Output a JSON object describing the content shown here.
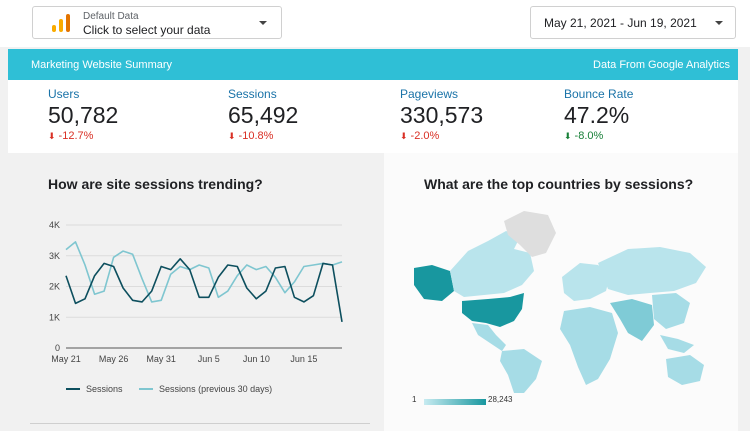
{
  "header": {
    "datasource_name": "Default Data",
    "datasource_prompt": "Click to select your data",
    "date_range": "May 21, 2021 - Jun 19, 2021"
  },
  "banner": {
    "title": "Marketing Website Summary",
    "source": "Data From Google Analytics",
    "color": "#2fbfd6"
  },
  "kpis": [
    {
      "label": "Users",
      "value": "50,782",
      "delta": "-12.7%",
      "direction": "down",
      "status": "negative"
    },
    {
      "label": "Sessions",
      "value": "65,492",
      "delta": "-10.8%",
      "direction": "down",
      "status": "negative"
    },
    {
      "label": "Pageviews",
      "value": "330,573",
      "delta": "-2.0%",
      "direction": "down",
      "status": "negative"
    },
    {
      "label": "Bounce Rate",
      "value": "47.2%",
      "delta": "-8.0%",
      "direction": "down",
      "status": "positive"
    }
  ],
  "trend": {
    "title": "How are site sessions trending?",
    "legend": [
      "Sessions",
      "Sessions (previous 30 days)"
    ]
  },
  "countries": {
    "title": "What are the top countries by sessions?",
    "scale_min": "1",
    "scale_max": "28,243",
    "colors": {
      "low": "#c7ebf1",
      "high": "#18979f",
      "none": "#dedede"
    }
  },
  "chart_data": [
    {
      "type": "line",
      "title": "How are site sessions trending?",
      "xlabel": "",
      "ylabel": "",
      "x": [
        "May 21",
        "May 22",
        "May 23",
        "May 24",
        "May 25",
        "May 26",
        "May 27",
        "May 28",
        "May 29",
        "May 30",
        "May 31",
        "Jun 1",
        "Jun 2",
        "Jun 3",
        "Jun 4",
        "Jun 5",
        "Jun 6",
        "Jun 7",
        "Jun 8",
        "Jun 9",
        "Jun 10",
        "Jun 11",
        "Jun 12",
        "Jun 13",
        "Jun 14",
        "Jun 15",
        "Jun 16",
        "Jun 17",
        "Jun 18",
        "Jun 19"
      ],
      "x_ticks": [
        "May 21",
        "May 26",
        "May 31",
        "Jun 5",
        "Jun 10",
        "Jun 15"
      ],
      "y_ticks": [
        "0",
        "1K",
        "2K",
        "3K",
        "4K"
      ],
      "ylim": [
        0,
        4000
      ],
      "grid": true,
      "legend_position": "bottom",
      "series": [
        {
          "name": "Sessions",
          "color": "#0d4f5e",
          "values": [
            2350,
            1450,
            1600,
            2350,
            2750,
            2650,
            1950,
            1550,
            1500,
            1850,
            2650,
            2550,
            2900,
            2550,
            1650,
            1650,
            2300,
            2700,
            2650,
            1950,
            1600,
            1850,
            2600,
            2650,
            1650,
            1500,
            1700,
            2750,
            2700,
            850
          ]
        },
        {
          "name": "Sessions (previous 30 days)",
          "color": "#7fc6d0",
          "values": [
            3200,
            3450,
            2700,
            1750,
            1850,
            2950,
            3150,
            3050,
            2250,
            1500,
            1550,
            2400,
            2650,
            2550,
            2700,
            2600,
            1650,
            1850,
            2350,
            2700,
            2550,
            2650,
            2300,
            1800,
            2150,
            2650,
            2700,
            2750,
            2700,
            2800
          ]
        }
      ]
    }
  ]
}
